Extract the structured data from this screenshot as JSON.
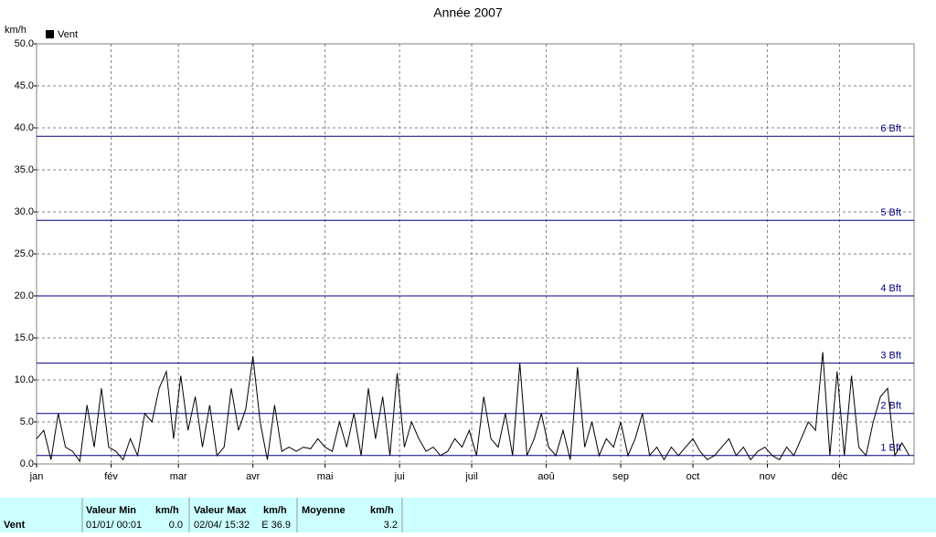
{
  "chart_data": {
    "type": "line",
    "title": "Année 2007",
    "y_unit_label": "km/h",
    "xlim": [
      0,
      365
    ],
    "xticks": [
      {
        "value": 0,
        "label": "jan"
      },
      {
        "value": 31,
        "label": "fév"
      },
      {
        "value": 59,
        "label": "mar"
      },
      {
        "value": 90,
        "label": "avr"
      },
      {
        "value": 120,
        "label": "mai"
      },
      {
        "value": 151,
        "label": "jui"
      },
      {
        "value": 181,
        "label": "juil"
      },
      {
        "value": 212,
        "label": "aoû"
      },
      {
        "value": 243,
        "label": "sep"
      },
      {
        "value": 273,
        "label": "oct"
      },
      {
        "value": 304,
        "label": "nov"
      },
      {
        "value": 334,
        "label": "déc"
      }
    ],
    "ylim": [
      0,
      50
    ],
    "yticks": [
      {
        "value": 0,
        "label": "0.0"
      },
      {
        "value": 5,
        "label": "5.0"
      },
      {
        "value": 10,
        "label": "10.0"
      },
      {
        "value": 15,
        "label": "15.0"
      },
      {
        "value": 20,
        "label": "20.0"
      },
      {
        "value": 25,
        "label": "25.0"
      },
      {
        "value": 30,
        "label": "30.0"
      },
      {
        "value": 35,
        "label": "35.0"
      },
      {
        "value": 40,
        "label": "40.0"
      },
      {
        "value": 45,
        "label": "45.0"
      },
      {
        "value": 50,
        "label": "50.0"
      }
    ],
    "grid": true,
    "reference_lines": [
      {
        "value": 1,
        "label": "1 Bft"
      },
      {
        "value": 6,
        "label": "2 Bft"
      },
      {
        "value": 12,
        "label": "3 Bft"
      },
      {
        "value": 20,
        "label": "4 Bft"
      },
      {
        "value": 29,
        "label": "5 Bft"
      },
      {
        "value": 39,
        "label": "6 Bft"
      }
    ],
    "reference_color": "#000080",
    "x": [
      0,
      3,
      6,
      9,
      12,
      15,
      18,
      21,
      24,
      27,
      30,
      33,
      36,
      39,
      42,
      45,
      48,
      51,
      54,
      57,
      60,
      63,
      66,
      69,
      72,
      75,
      78,
      81,
      84,
      87,
      90,
      93,
      96,
      99,
      102,
      105,
      108,
      111,
      114,
      117,
      120,
      123,
      126,
      129,
      132,
      135,
      138,
      141,
      144,
      147,
      150,
      153,
      156,
      159,
      162,
      165,
      168,
      171,
      174,
      177,
      180,
      183,
      186,
      189,
      192,
      195,
      198,
      201,
      204,
      207,
      210,
      213,
      216,
      219,
      222,
      225,
      228,
      231,
      234,
      237,
      240,
      243,
      246,
      249,
      252,
      255,
      258,
      261,
      264,
      267,
      270,
      273,
      276,
      279,
      282,
      285,
      288,
      291,
      294,
      297,
      300,
      303,
      306,
      309,
      312,
      315,
      318,
      321,
      324,
      327,
      330,
      333,
      336,
      339,
      342,
      345,
      348,
      351,
      354,
      357,
      360,
      363
    ],
    "series": [
      {
        "name": "Vent",
        "color": "#000000",
        "values": [
          3,
          4,
          0.5,
          6,
          2,
          1.5,
          0.3,
          7,
          2,
          9,
          2,
          1.5,
          0.5,
          3,
          1,
          6,
          5,
          9,
          11,
          3,
          10.5,
          4,
          8,
          2,
          7,
          1,
          2,
          9,
          4,
          6.5,
          12.8,
          5,
          0.5,
          7,
          1.5,
          2,
          1.5,
          2,
          1.8,
          3,
          2,
          1.5,
          5,
          2,
          6,
          1,
          9,
          3,
          8,
          1,
          10.8,
          2,
          5,
          3,
          1.5,
          2,
          1,
          1.5,
          3,
          2,
          4,
          1,
          8,
          3,
          2,
          6,
          1,
          12,
          1,
          3,
          6,
          2,
          1,
          4,
          0.5,
          11.5,
          2,
          5,
          1,
          3,
          2,
          5,
          1,
          3,
          6,
          1,
          2,
          0.5,
          2,
          1,
          2,
          3,
          1.5,
          0.5,
          1,
          2,
          3,
          1,
          2,
          0.5,
          1.5,
          2,
          1,
          0.5,
          2,
          1,
          3,
          5,
          4,
          13.3,
          1,
          11,
          1,
          10.5,
          2,
          1,
          5,
          8,
          9,
          1,
          2.5,
          1
        ]
      }
    ],
    "legend": "top-left"
  },
  "table": {
    "row_label": "Vent",
    "columns": [
      {
        "header": "Valeur Min",
        "unit": "km/h",
        "date": "01/01/ 00:01",
        "value": "0.0"
      },
      {
        "header": "Valeur Max",
        "unit": "km/h",
        "date": "02/04/ 15:32",
        "value": "E 36.9"
      },
      {
        "header": "Moyenne",
        "unit": "km/h",
        "date": null,
        "value": "3.2"
      }
    ]
  }
}
